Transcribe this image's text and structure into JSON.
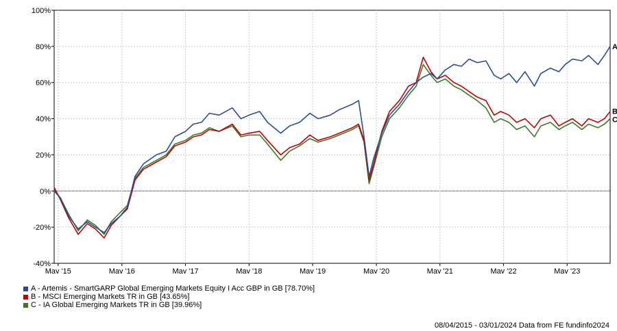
{
  "chart_data": {
    "type": "line",
    "title": "",
    "xlabel": "",
    "ylabel": "",
    "ylim": [
      -40,
      100
    ],
    "xlim": [
      "2015-04-08",
      "2024-01-03"
    ],
    "y_ticks": [
      -40,
      -20,
      0,
      20,
      40,
      60,
      80,
      100
    ],
    "y_tick_labels": [
      "-40%",
      "-20%",
      "0%",
      "20%",
      "40%",
      "60%",
      "80%",
      "100%"
    ],
    "x_ticks": [
      "2015-05-01",
      "2016-05-01",
      "2017-05-01",
      "2018-05-01",
      "2019-05-01",
      "2020-05-01",
      "2021-05-01",
      "2022-05-01",
      "2023-05-01"
    ],
    "x_tick_labels": [
      "May '15",
      "May '16",
      "May '17",
      "May '18",
      "May '19",
      "May '20",
      "May '21",
      "May '22",
      "May '23"
    ],
    "grid": true,
    "zero_line": "dotted",
    "legend_position": "bottom-left",
    "series": [
      {
        "name": "A - Artemis - SmartGARP Global Emerging Markets Equity I Acc GBP in GB [78.70%]",
        "end_label": "A",
        "color": "#2a4b9b",
        "x": [
          "2015-04-08",
          "2015-05-15",
          "2015-07-01",
          "2015-08-24",
          "2015-10-15",
          "2015-12-01",
          "2016-01-20",
          "2016-03-01",
          "2016-04-20",
          "2016-06-01",
          "2016-07-15",
          "2016-09-01",
          "2016-11-15",
          "2017-01-10",
          "2017-03-01",
          "2017-05-01",
          "2017-06-15",
          "2017-08-01",
          "2017-09-15",
          "2017-11-10",
          "2018-01-25",
          "2018-03-15",
          "2018-05-01",
          "2018-07-01",
          "2018-08-15",
          "2018-10-30",
          "2018-12-20",
          "2019-02-15",
          "2019-04-15",
          "2019-06-01",
          "2019-08-10",
          "2019-10-01",
          "2019-12-15",
          "2020-01-20",
          "2020-02-20",
          "2020-03-20",
          "2020-04-15",
          "2020-06-01",
          "2020-07-15",
          "2020-09-10",
          "2020-11-01",
          "2020-12-15",
          "2021-01-25",
          "2021-03-10",
          "2021-04-15",
          "2021-06-01",
          "2021-07-20",
          "2021-09-01",
          "2021-10-15",
          "2021-12-01",
          "2022-01-20",
          "2022-03-08",
          "2022-04-15",
          "2022-06-01",
          "2022-07-15",
          "2022-09-01",
          "2022-10-25",
          "2022-12-01",
          "2023-01-25",
          "2023-03-15",
          "2023-04-20",
          "2023-06-01",
          "2023-07-25",
          "2023-09-01",
          "2023-10-25",
          "2023-12-01",
          "2024-01-03"
        ],
        "values": [
          0,
          -4,
          -14,
          -21,
          -17,
          -20,
          -23,
          -18,
          -14,
          -9,
          8,
          15,
          20,
          22,
          30,
          33,
          37,
          38,
          43,
          42,
          46,
          40,
          42,
          44,
          38,
          32,
          36,
          38,
          43,
          40,
          42,
          45,
          48,
          50,
          30,
          8,
          18,
          32,
          42,
          48,
          55,
          60,
          63,
          65,
          62,
          67,
          70,
          69,
          73,
          71,
          72,
          64,
          62,
          65,
          60,
          66,
          58,
          65,
          68,
          66,
          70,
          73,
          72,
          75,
          70,
          75,
          80
        ]
      },
      {
        "name": "B - MSCI Emerging Markets TR in GB [43.65%]",
        "end_label": "B",
        "color": "#c00000",
        "x": [
          "2015-04-08",
          "2015-05-15",
          "2015-07-01",
          "2015-08-24",
          "2015-10-15",
          "2015-12-01",
          "2016-01-20",
          "2016-03-01",
          "2016-04-20",
          "2016-06-01",
          "2016-07-15",
          "2016-09-01",
          "2016-11-15",
          "2017-01-10",
          "2017-03-01",
          "2017-05-01",
          "2017-06-15",
          "2017-08-01",
          "2017-09-15",
          "2017-11-10",
          "2018-01-25",
          "2018-03-15",
          "2018-05-01",
          "2018-07-01",
          "2018-08-15",
          "2018-10-30",
          "2018-12-20",
          "2019-02-15",
          "2019-04-15",
          "2019-06-01",
          "2019-08-10",
          "2019-10-01",
          "2019-12-15",
          "2020-01-20",
          "2020-02-20",
          "2020-03-20",
          "2020-04-15",
          "2020-06-01",
          "2020-07-15",
          "2020-09-10",
          "2020-11-01",
          "2020-12-15",
          "2021-01-25",
          "2021-03-10",
          "2021-04-15",
          "2021-06-01",
          "2021-07-20",
          "2021-09-01",
          "2021-10-15",
          "2021-12-01",
          "2022-01-20",
          "2022-03-08",
          "2022-04-15",
          "2022-06-01",
          "2022-07-15",
          "2022-09-01",
          "2022-10-25",
          "2022-12-01",
          "2023-01-25",
          "2023-03-15",
          "2023-04-20",
          "2023-06-01",
          "2023-07-25",
          "2023-09-01",
          "2023-10-25",
          "2023-12-01",
          "2024-01-03"
        ],
        "values": [
          2,
          -5,
          -15,
          -24,
          -18,
          -21,
          -26,
          -19,
          -14,
          -10,
          6,
          12,
          16,
          19,
          25,
          27,
          30,
          31,
          34,
          33,
          37,
          31,
          32,
          33,
          28,
          20,
          24,
          26,
          31,
          28,
          30,
          32,
          35,
          37,
          28,
          6,
          15,
          33,
          44,
          50,
          58,
          60,
          74,
          66,
          62,
          64,
          60,
          58,
          55,
          52,
          50,
          42,
          44,
          42,
          38,
          40,
          35,
          40,
          42,
          36,
          38,
          40,
          36,
          40,
          38,
          40,
          44
        ]
      },
      {
        "name": "C - IA Global Emerging Markets TR in GB [39.96%]",
        "end_label": "C",
        "color": "#3c7a24",
        "x": [
          "2015-04-08",
          "2015-05-15",
          "2015-07-01",
          "2015-08-24",
          "2015-10-15",
          "2015-12-01",
          "2016-01-20",
          "2016-03-01",
          "2016-04-20",
          "2016-06-01",
          "2016-07-15",
          "2016-09-01",
          "2016-11-15",
          "2017-01-10",
          "2017-03-01",
          "2017-05-01",
          "2017-06-15",
          "2017-08-01",
          "2017-09-15",
          "2017-11-10",
          "2018-01-25",
          "2018-03-15",
          "2018-05-01",
          "2018-07-01",
          "2018-08-15",
          "2018-10-30",
          "2018-12-20",
          "2019-02-15",
          "2019-04-15",
          "2019-06-01",
          "2019-08-10",
          "2019-10-01",
          "2019-12-15",
          "2020-01-20",
          "2020-02-20",
          "2020-03-20",
          "2020-04-15",
          "2020-06-01",
          "2020-07-15",
          "2020-09-10",
          "2020-11-01",
          "2020-12-15",
          "2021-01-25",
          "2021-03-10",
          "2021-04-15",
          "2021-06-01",
          "2021-07-20",
          "2021-09-01",
          "2021-10-15",
          "2021-12-01",
          "2022-01-20",
          "2022-03-08",
          "2022-04-15",
          "2022-06-01",
          "2022-07-15",
          "2022-09-01",
          "2022-10-25",
          "2022-12-01",
          "2023-01-25",
          "2023-03-15",
          "2023-04-20",
          "2023-06-01",
          "2023-07-25",
          "2023-09-01",
          "2023-10-25",
          "2023-12-01",
          "2024-01-03"
        ],
        "values": [
          1,
          -4,
          -13,
          -22,
          -16,
          -19,
          -24,
          -17,
          -12,
          -8,
          7,
          13,
          17,
          20,
          26,
          28,
          31,
          32,
          35,
          33,
          36,
          30,
          31,
          31,
          26,
          17,
          22,
          25,
          29,
          27,
          29,
          31,
          34,
          36,
          27,
          4,
          13,
          30,
          40,
          46,
          53,
          58,
          70,
          64,
          60,
          62,
          58,
          56,
          53,
          50,
          46,
          38,
          40,
          38,
          34,
          36,
          30,
          36,
          38,
          34,
          36,
          38,
          34,
          37,
          35,
          37,
          40
        ]
      }
    ]
  },
  "footer": {
    "text": "08/04/2015 - 03/01/2024 Data from FE fundinfo2024"
  }
}
